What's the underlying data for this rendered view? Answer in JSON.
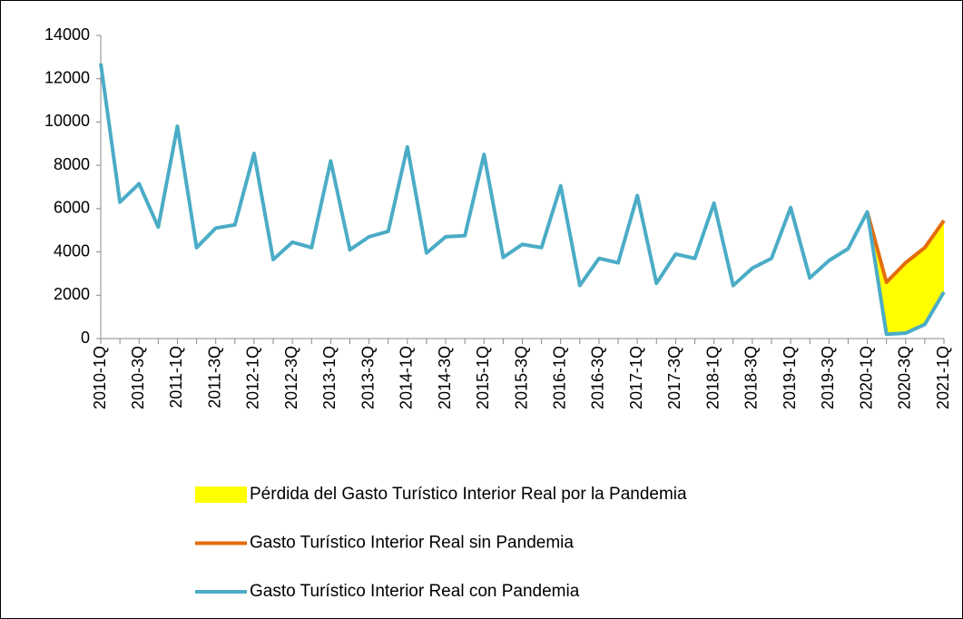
{
  "chart_data": {
    "type": "line",
    "categories": [
      "2010-1Q",
      null,
      "2010-3Q",
      null,
      "2011-1Q",
      null,
      "2011-3Q",
      null,
      "2012-1Q",
      null,
      "2012-3Q",
      null,
      "2013-1Q",
      null,
      "2013-3Q",
      null,
      "2014-1Q",
      null,
      "2014-3Q",
      null,
      "2015-1Q",
      null,
      "2015-3Q",
      null,
      "2016-1Q",
      null,
      "2016-3Q",
      null,
      "2017-1Q",
      null,
      "2017-3Q",
      null,
      "2018-1Q",
      null,
      "2018-3Q",
      null,
      "2019-1Q",
      null,
      "2019-3Q",
      null,
      "2020-1Q",
      null,
      "2020-3Q",
      null,
      "2021-1Q"
    ],
    "series": [
      {
        "name": "Pérdida del Gasto Turístico Interior Real por la Pandemia",
        "color": "#ffff00",
        "kind": "area",
        "values": [
          null,
          null,
          null,
          null,
          null,
          null,
          null,
          null,
          null,
          null,
          null,
          null,
          null,
          null,
          null,
          null,
          null,
          null,
          null,
          null,
          null,
          null,
          null,
          null,
          null,
          null,
          null,
          null,
          null,
          null,
          null,
          null,
          null,
          null,
          null,
          null,
          null,
          null,
          null,
          null,
          0,
          2400,
          3250,
          3550,
          3300
        ]
      },
      {
        "name": "Gasto Turístico Interior Real sin Pandemia",
        "color": "#e46c0a",
        "kind": "line",
        "values": [
          null,
          null,
          null,
          null,
          null,
          null,
          null,
          null,
          null,
          null,
          null,
          null,
          null,
          null,
          null,
          null,
          null,
          null,
          null,
          null,
          null,
          null,
          null,
          null,
          null,
          null,
          null,
          null,
          null,
          null,
          null,
          null,
          null,
          null,
          null,
          null,
          null,
          null,
          null,
          null,
          5850,
          2600,
          3500,
          4200,
          5450
        ]
      },
      {
        "name": "Gasto Turístico Interior Real con Pandemia",
        "color": "#4bacc6",
        "kind": "line",
        "values": [
          12700,
          6300,
          7150,
          5150,
          9800,
          4200,
          5100,
          5250,
          8550,
          3650,
          4450,
          4200,
          8200,
          4100,
          4700,
          4950,
          8850,
          3950,
          4700,
          4750,
          8500,
          3750,
          4350,
          4200,
          7050,
          2450,
          3700,
          3500,
          6600,
          2550,
          3900,
          3700,
          6250,
          2450,
          3250,
          3700,
          6050,
          2800,
          3600,
          4150,
          5850,
          200,
          250,
          650,
          2150
        ]
      }
    ],
    "ylim": [
      0,
      14000
    ],
    "yticks": [
      0,
      2000,
      4000,
      6000,
      8000,
      10000,
      12000,
      14000
    ]
  }
}
